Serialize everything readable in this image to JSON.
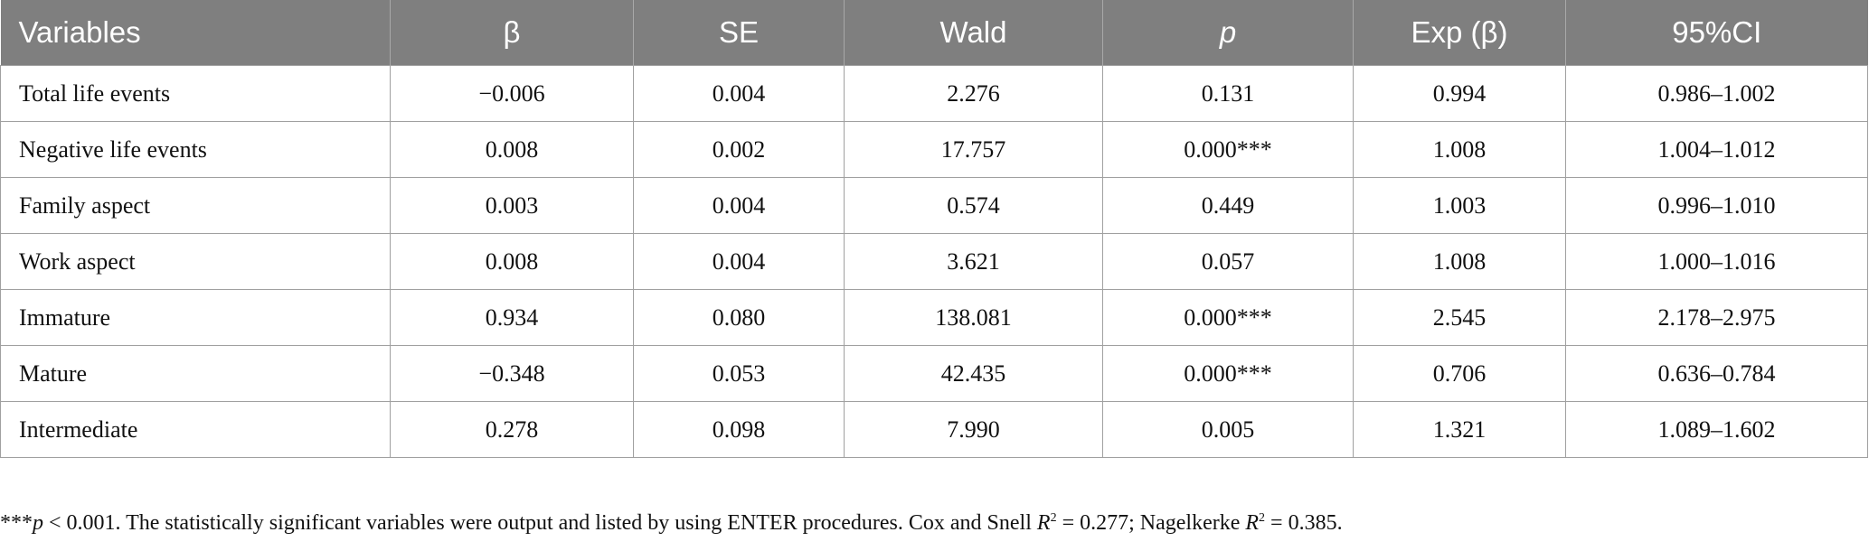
{
  "table": {
    "headers": [
      "Variables",
      "β",
      "SE",
      "Wald",
      "p",
      "Exp (β)",
      "95%CI"
    ],
    "rows": [
      [
        "Total life events",
        "−0.006",
        "0.004",
        "2.276",
        "0.131",
        "0.994",
        "0.986–1.002"
      ],
      [
        "Negative life events",
        "0.008",
        "0.002",
        "17.757",
        "0.000***",
        "1.008",
        "1.004–1.012"
      ],
      [
        "Family aspect",
        "0.003",
        "0.004",
        "0.574",
        "0.449",
        "1.003",
        "0.996–1.010"
      ],
      [
        "Work aspect",
        "0.008",
        "0.004",
        "3.621",
        "0.057",
        "1.008",
        "1.000–1.016"
      ],
      [
        "Immature",
        "0.934",
        "0.080",
        "138.081",
        "0.000***",
        "2.545",
        "2.178–2.975"
      ],
      [
        "Mature",
        "−0.348",
        "0.053",
        "42.435",
        "0.000***",
        "0.706",
        "0.636–0.784"
      ],
      [
        "Intermediate",
        "0.278",
        "0.098",
        "7.990",
        "0.005",
        "1.321",
        "1.089–1.602"
      ]
    ]
  },
  "footnote": {
    "stars": "***",
    "p_symbol": "p",
    "p_text": " < 0.001. The statistically significant variables were output and listed by using ENTER procedures. Cox and Snell ",
    "r_symbol": "R",
    "superscript": "2",
    "cox_value": " = 0.277; Nagelkerke ",
    "nag_value": " = 0.385."
  }
}
